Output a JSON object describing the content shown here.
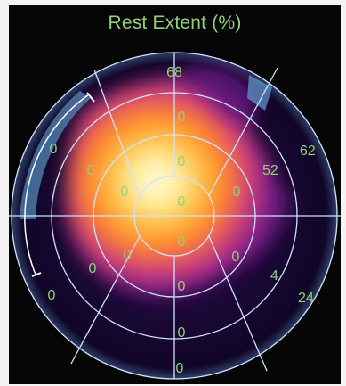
{
  "title": "Rest Extent (%)",
  "segments": {
    "ring_outer": {
      "s68": "68",
      "s62": "62",
      "s24": "24",
      "s0_bottom": "0",
      "s0_left_lower": "0",
      "s0_left_upper": "0"
    },
    "ring_middle": {
      "s0_top": "0",
      "s52": "52",
      "s4": "4",
      "s0_bottom": "0",
      "s0_lower_left": "0",
      "s0_upper_left": "0"
    },
    "ring_inner": {
      "s0_top": "0",
      "s0_right": "0",
      "s0_bottom": "0",
      "s0_left": "0"
    },
    "apex": {
      "s0_apex_top": "0",
      "s0_apex_bottom": "0"
    },
    "lower_extra": {
      "s0_a": "0",
      "s0_b": "0"
    }
  },
  "colors": {
    "label": "#8fd27a",
    "grid": "#cfe3ff",
    "background": "#050505"
  }
}
